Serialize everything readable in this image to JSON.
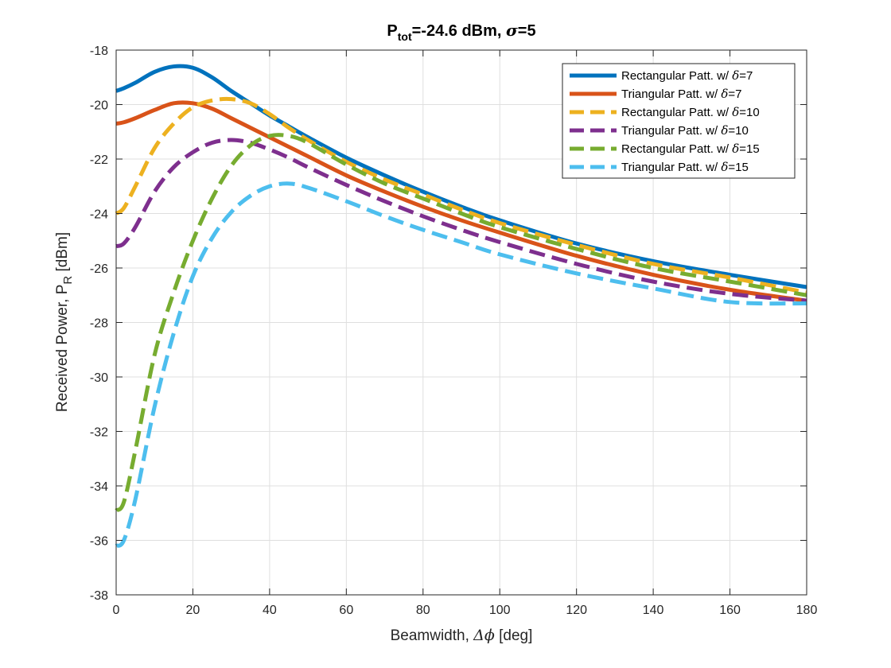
{
  "chart_data": {
    "type": "line",
    "title": {
      "main": "P",
      "sub": "tot",
      "rest": "=-24.6 dBm, ",
      "sigma_symbol": "σ",
      "sigma_value": "=5"
    },
    "xlabel": {
      "text": "Beamwidth, ",
      "symbol": "Δϕ",
      "unit": " [deg]"
    },
    "ylabel": {
      "text": "Received Power, P",
      "sub": "R",
      "unit": " [dBm]"
    },
    "xlim": [
      0,
      180
    ],
    "ylim": [
      -38,
      -18
    ],
    "xticks": [
      "0",
      "20",
      "40",
      "60",
      "80",
      "100",
      "120",
      "140",
      "160",
      "180"
    ],
    "yticks": [
      "-18",
      "-20",
      "-22",
      "-24",
      "-26",
      "-28",
      "-30",
      "-32",
      "-34",
      "-36",
      "-38"
    ],
    "grid": true,
    "legend_position": "top-right",
    "x": [
      0,
      2,
      5,
      10,
      15,
      20,
      25,
      30,
      35,
      40,
      45,
      50,
      60,
      70,
      80,
      90,
      100,
      120,
      140,
      160,
      180
    ],
    "series": [
      {
        "name": "Rectangular Patt. w/ ",
        "param": "7",
        "color": "#0072BD",
        "dash": "solid",
        "values": [
          -19.5,
          -19.4,
          -19.2,
          -18.8,
          -18.6,
          -18.65,
          -19.0,
          -19.5,
          -19.95,
          -20.4,
          -20.8,
          -21.2,
          -21.95,
          -22.6,
          -23.2,
          -23.75,
          -24.25,
          -25.1,
          -25.75,
          -26.25,
          -26.7
        ]
      },
      {
        "name": "Triangular Patt. w/ ",
        "param": "7",
        "color": "#D95319",
        "dash": "solid",
        "values": [
          -20.7,
          -20.65,
          -20.5,
          -20.2,
          -19.95,
          -19.95,
          -20.15,
          -20.5,
          -20.85,
          -21.2,
          -21.55,
          -21.9,
          -22.6,
          -23.2,
          -23.75,
          -24.25,
          -24.7,
          -25.55,
          -26.25,
          -26.8,
          -27.2
        ]
      },
      {
        "name": "Rectangular Patt. w/ ",
        "param": "10",
        "color": "#EDB120",
        "dash": "dash",
        "values": [
          -24.0,
          -23.8,
          -23.0,
          -21.6,
          -20.7,
          -20.1,
          -19.85,
          -19.8,
          -19.95,
          -20.35,
          -20.85,
          -21.3,
          -22.1,
          -22.75,
          -23.3,
          -23.85,
          -24.35,
          -25.15,
          -25.85,
          -26.35,
          -26.9
        ]
      },
      {
        "name": "Triangular Patt. w/ ",
        "param": "10",
        "color": "#7E2F8E",
        "dash": "dash",
        "values": [
          -25.2,
          -25.1,
          -24.5,
          -23.2,
          -22.3,
          -21.75,
          -21.4,
          -21.3,
          -21.4,
          -21.65,
          -21.95,
          -22.3,
          -22.95,
          -23.55,
          -24.1,
          -24.6,
          -25.05,
          -25.85,
          -26.5,
          -26.95,
          -27.2
        ]
      },
      {
        "name": "Rectangular Patt. w/ ",
        "param": "15",
        "color": "#77AC30",
        "dash": "dash",
        "values": [
          -34.9,
          -34.6,
          -32.7,
          -29.2,
          -26.9,
          -25.0,
          -23.45,
          -22.25,
          -21.5,
          -21.15,
          -21.15,
          -21.4,
          -22.2,
          -22.9,
          -23.45,
          -24.0,
          -24.5,
          -25.3,
          -26.0,
          -26.5,
          -27.0
        ]
      },
      {
        "name": "Triangular Patt. w/ ",
        "param": "15",
        "color": "#4DBEEE",
        "dash": "dash",
        "values": [
          -36.2,
          -36.0,
          -34.5,
          -31.1,
          -28.4,
          -26.3,
          -24.9,
          -23.95,
          -23.35,
          -23.0,
          -22.9,
          -23.05,
          -23.55,
          -24.1,
          -24.6,
          -25.05,
          -25.5,
          -26.2,
          -26.75,
          -27.25,
          -27.3
        ]
      }
    ]
  }
}
